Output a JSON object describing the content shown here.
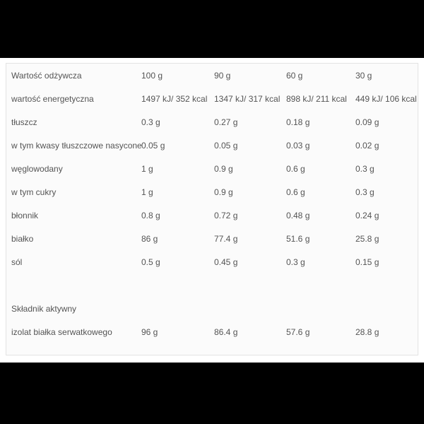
{
  "colors": {
    "letterbox": "#000000",
    "page_background": "#ffffff",
    "card_background": "#fbfbfb",
    "card_border": "#e3e3e3",
    "text": "#545454"
  },
  "nutrition_table": {
    "header": {
      "label": "Wartość odżywcza",
      "values": [
        "100 g",
        "90 g",
        "60 g",
        "30 g"
      ]
    },
    "rows": [
      {
        "label": "wartość energetyczna",
        "values": [
          "1497 kJ/ 352 kcal",
          "1347 kJ/ 317 kcal",
          "898 kJ/ 211 kcal",
          "449 kJ/ 106 kcal"
        ]
      },
      {
        "label": "tłuszcz",
        "values": [
          "0.3 g",
          "0.27 g",
          "0.18 g",
          "0.09 g"
        ]
      },
      {
        "label": "w tym kwasy tłuszczowe nasycone",
        "values": [
          "0.05 g",
          "0.05 g",
          "0.03 g",
          "0.02 g"
        ]
      },
      {
        "label": "węglowodany",
        "values": [
          "1 g",
          "0.9 g",
          "0.6 g",
          "0.3 g"
        ]
      },
      {
        "label": "w tym cukry",
        "values": [
          "1 g",
          "0.9 g",
          "0.6 g",
          "0.3 g"
        ]
      },
      {
        "label": "błonnik",
        "values": [
          "0.8 g",
          "0.72 g",
          "0.48 g",
          "0.24 g"
        ]
      },
      {
        "label": "białko",
        "values": [
          "86 g",
          "77.4 g",
          "51.6 g",
          "25.8 g"
        ]
      },
      {
        "label": "sól",
        "values": [
          "0.5 g",
          "0.45 g",
          "0.3 g",
          "0.15 g"
        ]
      },
      {
        "label": "",
        "values": [
          "",
          "",
          "",
          ""
        ],
        "spacer": true
      },
      {
        "label": "Składnik aktywny",
        "values": [
          "",
          "",
          "",
          ""
        ],
        "section": true
      },
      {
        "label": "izolat białka serwatkowego",
        "values": [
          "96 g",
          "86.4 g",
          "57.6 g",
          "28.8 g"
        ]
      }
    ]
  }
}
